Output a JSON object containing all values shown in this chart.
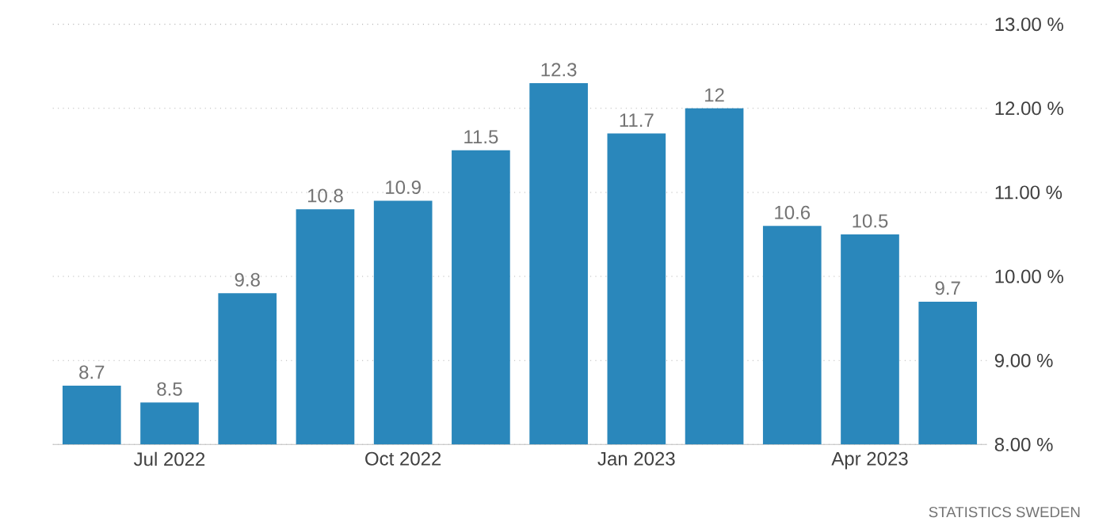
{
  "chart_data": {
    "type": "bar",
    "categories": [
      null,
      "Jul 2022",
      null,
      null,
      "Oct 2022",
      null,
      null,
      "Jan 2023",
      null,
      null,
      "Apr 2023",
      null
    ],
    "values": [
      8.7,
      8.5,
      9.8,
      10.8,
      10.9,
      11.5,
      12.3,
      11.7,
      12,
      10.6,
      10.5,
      9.7
    ],
    "value_labels": [
      "8.7",
      "8.5",
      "9.8",
      "10.8",
      "10.9",
      "11.5",
      "12.3",
      "11.7",
      "12",
      "10.6",
      "10.5",
      "9.7"
    ],
    "color": "#2a87bb",
    "ylim": [
      8,
      13
    ],
    "yticks": [
      {
        "value": 8,
        "label": "8.00 %"
      },
      {
        "value": 9,
        "label": "9.00 %"
      },
      {
        "value": 10,
        "label": "10.00 %"
      },
      {
        "value": 11,
        "label": "11.00 %"
      },
      {
        "value": 12,
        "label": "12.00 %"
      },
      {
        "value": 13,
        "label": "13.00 %"
      }
    ],
    "grid": "y",
    "annotations": [
      "STATISTICS SWEDEN"
    ]
  }
}
